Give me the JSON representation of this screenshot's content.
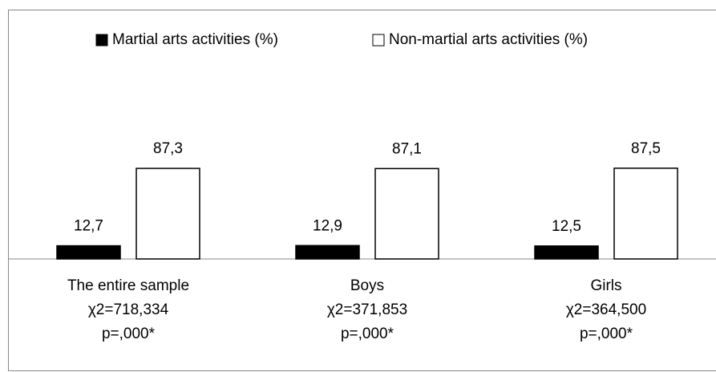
{
  "chart_data": {
    "type": "bar",
    "categories": [
      "The entire sample",
      "Boys",
      "Girls"
    ],
    "category_stats": [
      [
        "χ2=718,334",
        "p=,000*"
      ],
      [
        "χ2=371,853",
        "p=,000*"
      ],
      [
        "χ2=364,500",
        "p=,000*"
      ]
    ],
    "series": [
      {
        "name": "Martial arts activities (%)",
        "color": "#000000",
        "values": [
          12.7,
          12.9,
          12.5
        ],
        "value_labels": [
          "12,7",
          "12,9",
          "12,5"
        ]
      },
      {
        "name": "Non-martial arts activities (%)",
        "color": "#ffffff",
        "values": [
          87.3,
          87.1,
          87.5
        ],
        "value_labels": [
          "87,3",
          "87,1",
          "87,5"
        ]
      }
    ],
    "ylim": [
      0,
      100
    ],
    "legend": "top"
  }
}
